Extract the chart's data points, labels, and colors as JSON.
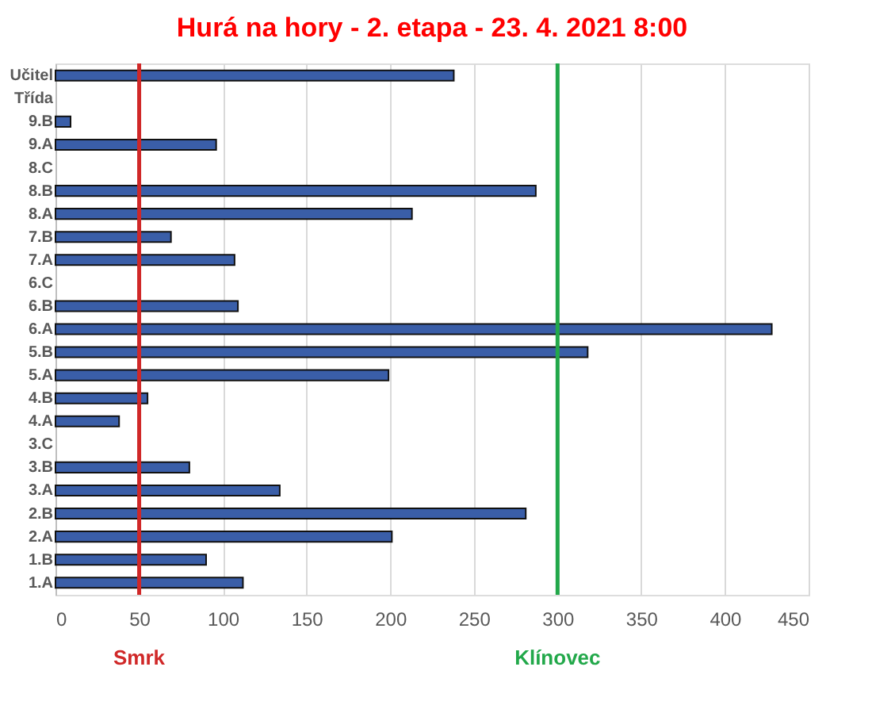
{
  "chart_data": {
    "type": "bar",
    "orientation": "horizontal",
    "title": "Hurá na hory - 2. etapa - 23. 4. 2021 8:00",
    "categories": [
      "Učitel",
      "Třída",
      "9.B",
      "9.A",
      "8.C",
      "8.B",
      "8.A",
      "7.B",
      "7.A",
      "6.C",
      "6.B",
      "6.A",
      "5.B",
      "5.A",
      "4.B",
      "4.A",
      "3.C",
      "3.B",
      "3.A",
      "2.B",
      "2.A",
      "1.B",
      "1.A"
    ],
    "values": [
      238,
      null,
      9,
      96,
      null,
      287,
      213,
      69,
      107,
      null,
      109,
      428,
      318,
      199,
      55,
      38,
      null,
      80,
      134,
      281,
      201,
      90,
      112
    ],
    "color": "#3a5ea8",
    "xlim": [
      0,
      450
    ],
    "xticks": [
      0,
      50,
      100,
      150,
      200,
      250,
      300,
      350,
      400,
      450
    ],
    "grid": "x",
    "ref_lines": [
      {
        "axis": "x",
        "value": 50,
        "label": "Smrk",
        "color": "#d02828"
      },
      {
        "axis": "x",
        "value": 300,
        "label": "Klínovec",
        "color": "#22a84a"
      }
    ]
  }
}
